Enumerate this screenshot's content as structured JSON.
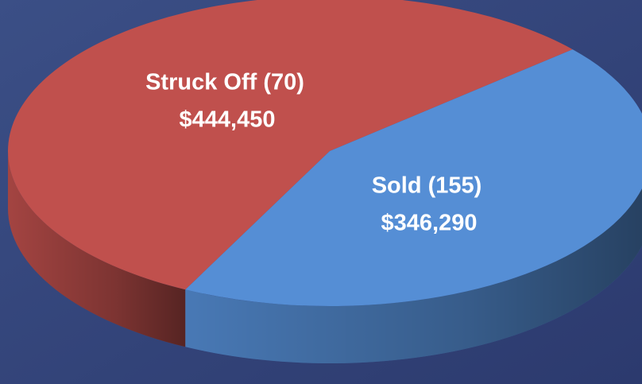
{
  "chart_data": {
    "type": "pie",
    "labels": [
      "Struck Off (70)",
      "Sold (155)"
    ],
    "values": [
      444450,
      346290
    ],
    "value_labels": [
      "$444,450",
      "$346,290"
    ],
    "colors": [
      "#c0504d",
      "#558ed5"
    ]
  }
}
